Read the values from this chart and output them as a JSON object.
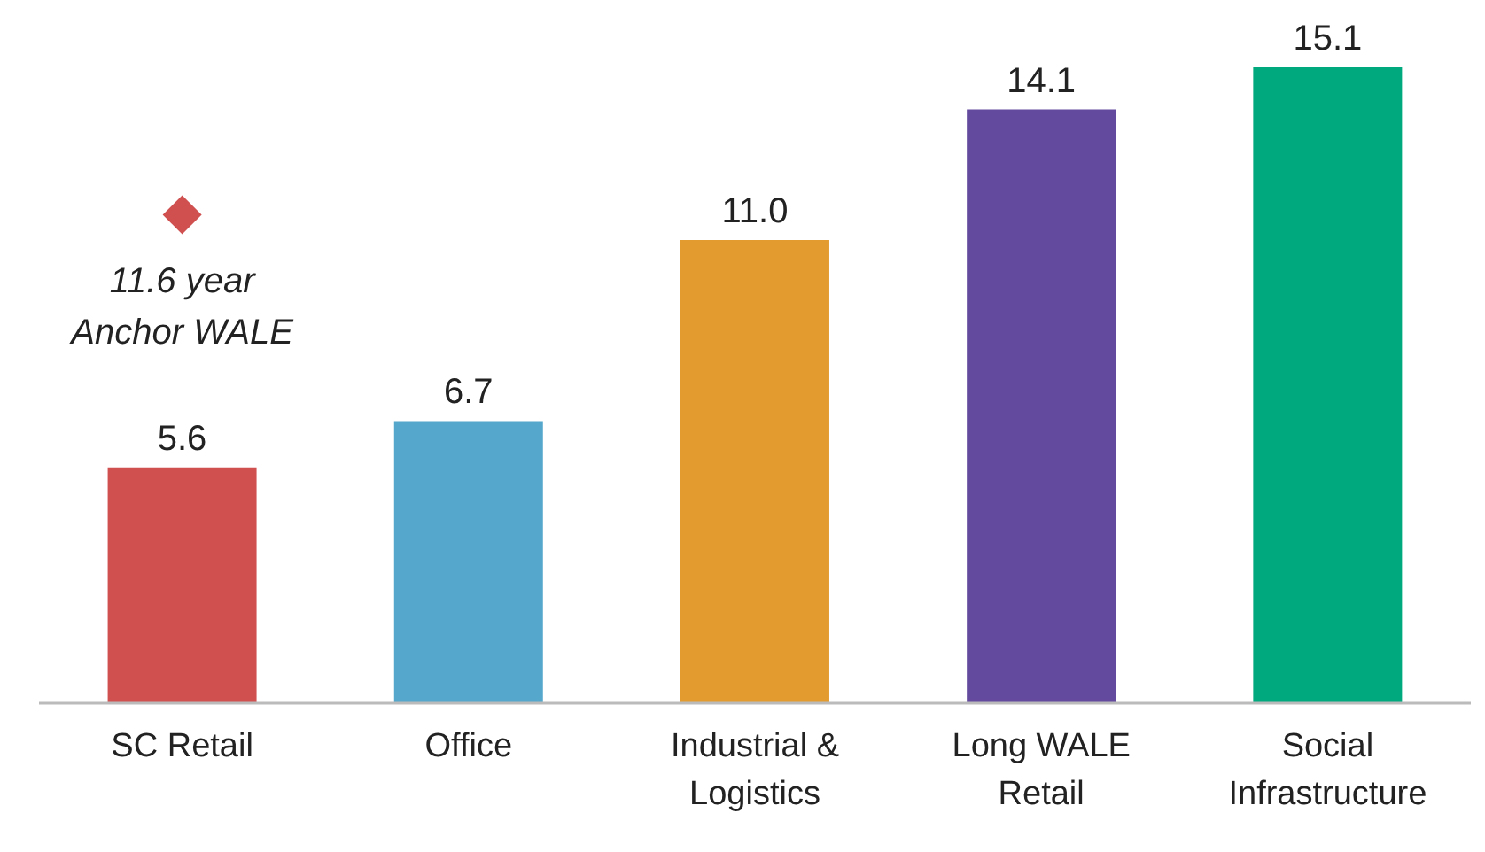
{
  "chart_data": {
    "type": "bar",
    "categories": [
      "SC Retail",
      "Office",
      "Industrial & Logistics",
      "Long WALE Retail",
      "Social Infrastructure"
    ],
    "series": [
      {
        "values": [
          5.6,
          6.7,
          11.0,
          14.1,
          15.1
        ],
        "value_labels": [
          "5.6",
          "6.7",
          "11.0",
          "14.1",
          "15.1"
        ],
        "colors": [
          "#d05050",
          "#55a8cc",
          "#e39b30",
          "#634a9e",
          "#00a97e"
        ]
      },
      {
        "type": "scatter",
        "x": [
          "SC Retail"
        ],
        "values": [
          11.6
        ],
        "color": "#d05050",
        "marker": "diamond"
      }
    ],
    "tick_labels": "x",
    "annotations": [
      {
        "text": "11.6 year Anchor WALE",
        "x": "SC Retail",
        "y": 11.6
      }
    ]
  }
}
